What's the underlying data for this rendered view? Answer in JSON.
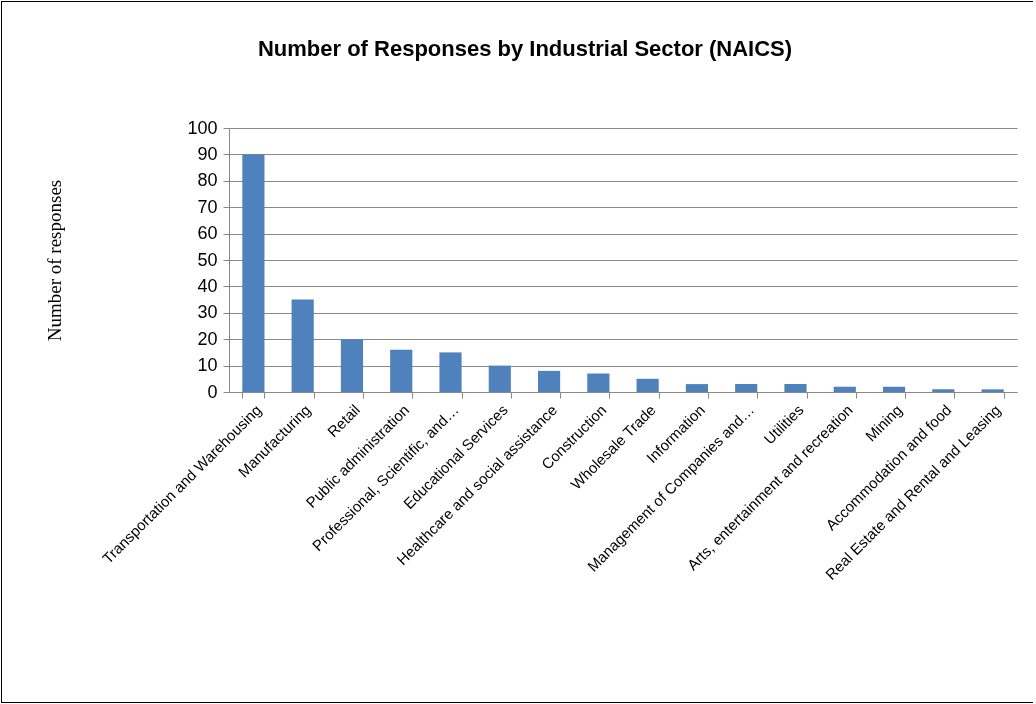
{
  "chart_data": {
    "type": "bar",
    "title": "Number of Responses by Industrial Sector (NAICS)",
    "ylabel": "Number of responses",
    "categories": [
      "Transportation and Warehousing",
      "Manufacturing",
      "Retail",
      "Public administration",
      "Professional, Scientific, and…",
      "Educational Services",
      "Healthcare and social assistance",
      "Construction",
      "Wholesale Trade",
      "Information",
      "Management of Companies and…",
      "Utilities",
      "Arts, entertainment and recreation",
      "Mining",
      "Accommodation and food",
      "Real Estate and Rental and Leasing"
    ],
    "values": [
      90,
      35,
      20,
      16,
      15,
      10,
      8,
      7,
      5,
      3,
      3,
      3,
      2,
      2,
      1,
      1
    ],
    "color": "#4f81bd",
    "ylim": [
      0,
      100
    ],
    "yticks": [
      0,
      10,
      20,
      30,
      40,
      50,
      60,
      70,
      80,
      90,
      100
    ],
    "grid": "y"
  }
}
